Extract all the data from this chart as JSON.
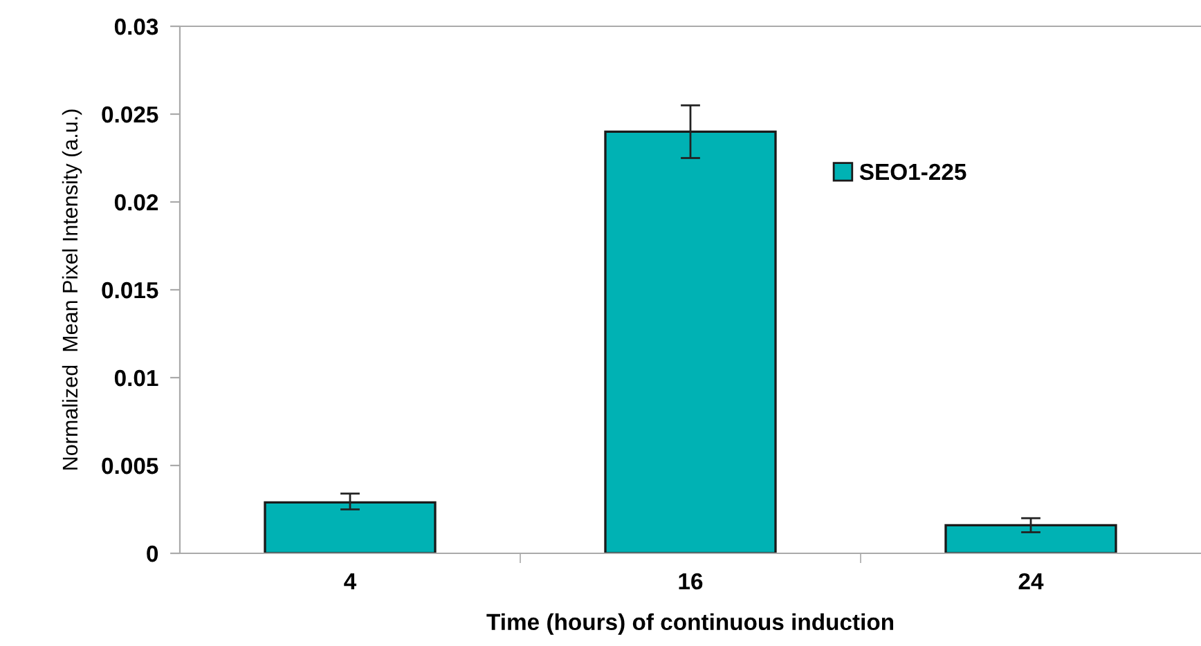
{
  "chart_data": {
    "type": "bar",
    "xlabel": "Time (hours) of continuous induction",
    "ylabel": "Normalized  Mean Pixel Intensity (a.u.)",
    "categories": [
      "4",
      "16",
      "24"
    ],
    "series": [
      {
        "name": "SEO1-225",
        "color": "#00b2b4",
        "values": [
          0.0029,
          0.024,
          0.0016
        ],
        "errors": [
          [
            0.0025,
            0.0034
          ],
          [
            0.0225,
            0.0255
          ],
          [
            0.0012,
            0.002
          ]
        ]
      }
    ],
    "ylim": [
      0,
      0.03
    ],
    "yticks": [
      0,
      0.005,
      0.01,
      0.015,
      0.02,
      0.025,
      0.03
    ],
    "grid": false,
    "legend": "top right"
  }
}
